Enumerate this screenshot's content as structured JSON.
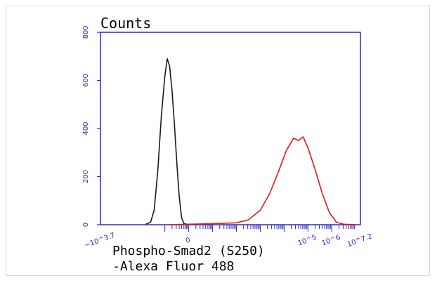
{
  "chart_data": {
    "type": "line",
    "title": "Counts",
    "xlabel_line1": "Phospho-Smad2 (S250)",
    "xlabel_line2": "-Alexa Fluor 488",
    "ylabel": "",
    "x_scale": "log",
    "xlim": [
      -3.7,
      7.2
    ],
    "ylim": [
      0,
      800
    ],
    "y_ticks": [
      0,
      200,
      400,
      600,
      800
    ],
    "x_tick_labels": [
      {
        "value": -3.7,
        "label": "−10^3.7"
      },
      {
        "value": 0,
        "label": "0"
      },
      {
        "value": 5,
        "label": "10^5"
      },
      {
        "value": 6,
        "label": "10^6"
      },
      {
        "value": 7.2,
        "label": "10^7.2"
      }
    ],
    "grid": false,
    "axis_color": "#2a2ac8",
    "series": [
      {
        "color": "#1a1a1a",
        "points": [
          [
            -1.8,
            2
          ],
          [
            -1.6,
            10
          ],
          [
            -1.45,
            60
          ],
          [
            -1.3,
            220
          ],
          [
            -1.15,
            450
          ],
          [
            -1.0,
            620
          ],
          [
            -0.9,
            690
          ],
          [
            -0.8,
            660
          ],
          [
            -0.7,
            560
          ],
          [
            -0.6,
            420
          ],
          [
            -0.5,
            260
          ],
          [
            -0.4,
            120
          ],
          [
            -0.3,
            30
          ],
          [
            -0.2,
            5
          ],
          [
            0.0,
            0
          ]
        ]
      },
      {
        "color": "#e01818",
        "points": [
          [
            -0.8,
            0
          ],
          [
            0.0,
            2
          ],
          [
            1.0,
            4
          ],
          [
            2.0,
            8
          ],
          [
            2.5,
            20
          ],
          [
            3.0,
            60
          ],
          [
            3.4,
            130
          ],
          [
            3.8,
            230
          ],
          [
            4.1,
            310
          ],
          [
            4.4,
            360
          ],
          [
            4.6,
            350
          ],
          [
            4.8,
            365
          ],
          [
            5.0,
            320
          ],
          [
            5.3,
            230
          ],
          [
            5.6,
            130
          ],
          [
            5.9,
            50
          ],
          [
            6.2,
            10
          ],
          [
            6.5,
            2
          ],
          [
            7.0,
            0
          ]
        ]
      }
    ]
  }
}
